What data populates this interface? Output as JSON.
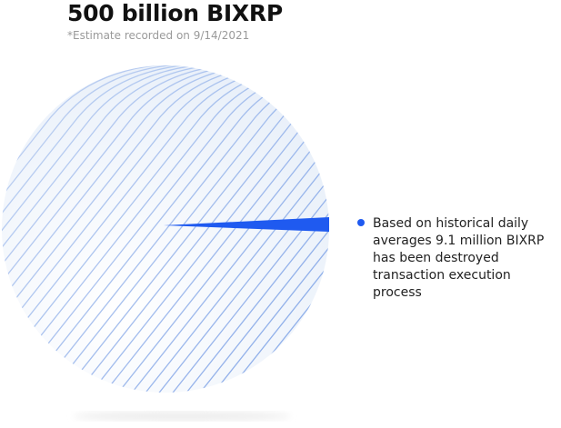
{
  "header": {
    "title": "500 billion BIXRP",
    "note": "*Estimate recorded on 9/14/2021"
  },
  "bullet": {
    "lines": [
      "Based on historical daily",
      "averages 9.1 million BIXRP",
      "has been destroyed",
      "transaction execution",
      "process"
    ]
  }
}
